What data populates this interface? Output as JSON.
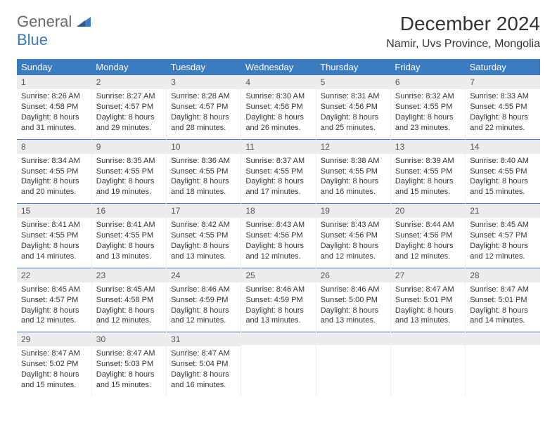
{
  "brand": {
    "word1": "General",
    "word2": "Blue"
  },
  "title": "December 2024",
  "location": "Namir, Uvs Province, Mongolia",
  "colors": {
    "header_bg": "#3b7bbf",
    "header_fg": "#ffffff",
    "daynum_bg": "#ededed",
    "rule": "#3b7bbf",
    "logo_gray": "#6a6a6a",
    "logo_blue": "#3b7bbf"
  },
  "weekdays": [
    "Sunday",
    "Monday",
    "Tuesday",
    "Wednesday",
    "Thursday",
    "Friday",
    "Saturday"
  ],
  "weeks": [
    [
      {
        "n": "1",
        "sunrise": "Sunrise: 8:26 AM",
        "sunset": "Sunset: 4:58 PM",
        "day": "Daylight: 8 hours and 31 minutes."
      },
      {
        "n": "2",
        "sunrise": "Sunrise: 8:27 AM",
        "sunset": "Sunset: 4:57 PM",
        "day": "Daylight: 8 hours and 29 minutes."
      },
      {
        "n": "3",
        "sunrise": "Sunrise: 8:28 AM",
        "sunset": "Sunset: 4:57 PM",
        "day": "Daylight: 8 hours and 28 minutes."
      },
      {
        "n": "4",
        "sunrise": "Sunrise: 8:30 AM",
        "sunset": "Sunset: 4:56 PM",
        "day": "Daylight: 8 hours and 26 minutes."
      },
      {
        "n": "5",
        "sunrise": "Sunrise: 8:31 AM",
        "sunset": "Sunset: 4:56 PM",
        "day": "Daylight: 8 hours and 25 minutes."
      },
      {
        "n": "6",
        "sunrise": "Sunrise: 8:32 AM",
        "sunset": "Sunset: 4:55 PM",
        "day": "Daylight: 8 hours and 23 minutes."
      },
      {
        "n": "7",
        "sunrise": "Sunrise: 8:33 AM",
        "sunset": "Sunset: 4:55 PM",
        "day": "Daylight: 8 hours and 22 minutes."
      }
    ],
    [
      {
        "n": "8",
        "sunrise": "Sunrise: 8:34 AM",
        "sunset": "Sunset: 4:55 PM",
        "day": "Daylight: 8 hours and 20 minutes."
      },
      {
        "n": "9",
        "sunrise": "Sunrise: 8:35 AM",
        "sunset": "Sunset: 4:55 PM",
        "day": "Daylight: 8 hours and 19 minutes."
      },
      {
        "n": "10",
        "sunrise": "Sunrise: 8:36 AM",
        "sunset": "Sunset: 4:55 PM",
        "day": "Daylight: 8 hours and 18 minutes."
      },
      {
        "n": "11",
        "sunrise": "Sunrise: 8:37 AM",
        "sunset": "Sunset: 4:55 PM",
        "day": "Daylight: 8 hours and 17 minutes."
      },
      {
        "n": "12",
        "sunrise": "Sunrise: 8:38 AM",
        "sunset": "Sunset: 4:55 PM",
        "day": "Daylight: 8 hours and 16 minutes."
      },
      {
        "n": "13",
        "sunrise": "Sunrise: 8:39 AM",
        "sunset": "Sunset: 4:55 PM",
        "day": "Daylight: 8 hours and 15 minutes."
      },
      {
        "n": "14",
        "sunrise": "Sunrise: 8:40 AM",
        "sunset": "Sunset: 4:55 PM",
        "day": "Daylight: 8 hours and 15 minutes."
      }
    ],
    [
      {
        "n": "15",
        "sunrise": "Sunrise: 8:41 AM",
        "sunset": "Sunset: 4:55 PM",
        "day": "Daylight: 8 hours and 14 minutes."
      },
      {
        "n": "16",
        "sunrise": "Sunrise: 8:41 AM",
        "sunset": "Sunset: 4:55 PM",
        "day": "Daylight: 8 hours and 13 minutes."
      },
      {
        "n": "17",
        "sunrise": "Sunrise: 8:42 AM",
        "sunset": "Sunset: 4:55 PM",
        "day": "Daylight: 8 hours and 13 minutes."
      },
      {
        "n": "18",
        "sunrise": "Sunrise: 8:43 AM",
        "sunset": "Sunset: 4:56 PM",
        "day": "Daylight: 8 hours and 12 minutes."
      },
      {
        "n": "19",
        "sunrise": "Sunrise: 8:43 AM",
        "sunset": "Sunset: 4:56 PM",
        "day": "Daylight: 8 hours and 12 minutes."
      },
      {
        "n": "20",
        "sunrise": "Sunrise: 8:44 AM",
        "sunset": "Sunset: 4:56 PM",
        "day": "Daylight: 8 hours and 12 minutes."
      },
      {
        "n": "21",
        "sunrise": "Sunrise: 8:45 AM",
        "sunset": "Sunset: 4:57 PM",
        "day": "Daylight: 8 hours and 12 minutes."
      }
    ],
    [
      {
        "n": "22",
        "sunrise": "Sunrise: 8:45 AM",
        "sunset": "Sunset: 4:57 PM",
        "day": "Daylight: 8 hours and 12 minutes."
      },
      {
        "n": "23",
        "sunrise": "Sunrise: 8:45 AM",
        "sunset": "Sunset: 4:58 PM",
        "day": "Daylight: 8 hours and 12 minutes."
      },
      {
        "n": "24",
        "sunrise": "Sunrise: 8:46 AM",
        "sunset": "Sunset: 4:59 PM",
        "day": "Daylight: 8 hours and 12 minutes."
      },
      {
        "n": "25",
        "sunrise": "Sunrise: 8:46 AM",
        "sunset": "Sunset: 4:59 PM",
        "day": "Daylight: 8 hours and 13 minutes."
      },
      {
        "n": "26",
        "sunrise": "Sunrise: 8:46 AM",
        "sunset": "Sunset: 5:00 PM",
        "day": "Daylight: 8 hours and 13 minutes."
      },
      {
        "n": "27",
        "sunrise": "Sunrise: 8:47 AM",
        "sunset": "Sunset: 5:01 PM",
        "day": "Daylight: 8 hours and 13 minutes."
      },
      {
        "n": "28",
        "sunrise": "Sunrise: 8:47 AM",
        "sunset": "Sunset: 5:01 PM",
        "day": "Daylight: 8 hours and 14 minutes."
      }
    ],
    [
      {
        "n": "29",
        "sunrise": "Sunrise: 8:47 AM",
        "sunset": "Sunset: 5:02 PM",
        "day": "Daylight: 8 hours and 15 minutes."
      },
      {
        "n": "30",
        "sunrise": "Sunrise: 8:47 AM",
        "sunset": "Sunset: 5:03 PM",
        "day": "Daylight: 8 hours and 15 minutes."
      },
      {
        "n": "31",
        "sunrise": "Sunrise: 8:47 AM",
        "sunset": "Sunset: 5:04 PM",
        "day": "Daylight: 8 hours and 16 minutes."
      },
      null,
      null,
      null,
      null
    ]
  ]
}
